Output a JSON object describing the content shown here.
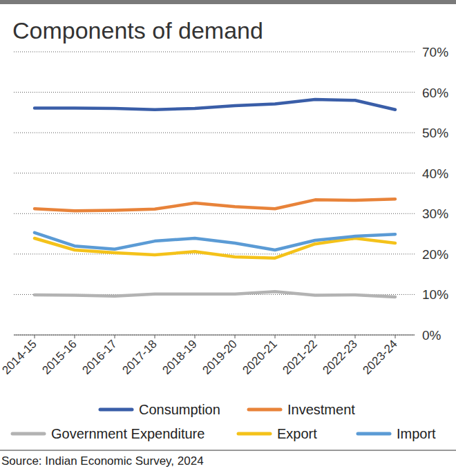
{
  "chart_data": {
    "type": "line",
    "title": "Components of demand",
    "source": "Source: Indian Economic Survey, 2024",
    "categories": [
      "2014-15",
      "2015-16",
      "2016-17",
      "2017-18",
      "2018-19",
      "2019-20",
      "2020-21",
      "2021-22",
      "2022-23",
      "2023-24"
    ],
    "series": [
      {
        "name": "Consumption",
        "color": "#3a5ea8",
        "values": [
          56.1,
          56.1,
          56.0,
          55.7,
          56.0,
          56.7,
          57.1,
          58.2,
          58.0,
          55.7
        ]
      },
      {
        "name": "Investment",
        "color": "#e8833a",
        "values": [
          31.2,
          30.7,
          30.8,
          31.1,
          32.6,
          31.7,
          31.2,
          33.4,
          33.3,
          33.6
        ]
      },
      {
        "name": "Government Expenditure",
        "color": "#b3b3b3",
        "values": [
          9.9,
          9.8,
          9.6,
          10.1,
          10.1,
          10.1,
          10.7,
          9.8,
          9.9,
          9.4
        ]
      },
      {
        "name": "Export",
        "color": "#f4c21a",
        "values": [
          23.9,
          21.0,
          20.3,
          19.8,
          20.6,
          19.3,
          19.0,
          22.5,
          23.9,
          22.7
        ]
      },
      {
        "name": "Import",
        "color": "#5b9bd5",
        "values": [
          25.3,
          22.0,
          21.2,
          23.2,
          23.9,
          22.7,
          21.0,
          23.4,
          24.4,
          24.9
        ]
      }
    ],
    "ylim": [
      0,
      70
    ],
    "yticks": [
      {
        "value": 0,
        "label": "0%"
      },
      {
        "value": 10,
        "label": "10%"
      },
      {
        "value": 20,
        "label": "20%"
      },
      {
        "value": 30,
        "label": "30%"
      },
      {
        "value": 40,
        "label": "40%"
      },
      {
        "value": 50,
        "label": "50%"
      },
      {
        "value": 60,
        "label": "60%"
      },
      {
        "value": 70,
        "label": "70%"
      }
    ],
    "grid": true,
    "legend": "bottom"
  }
}
